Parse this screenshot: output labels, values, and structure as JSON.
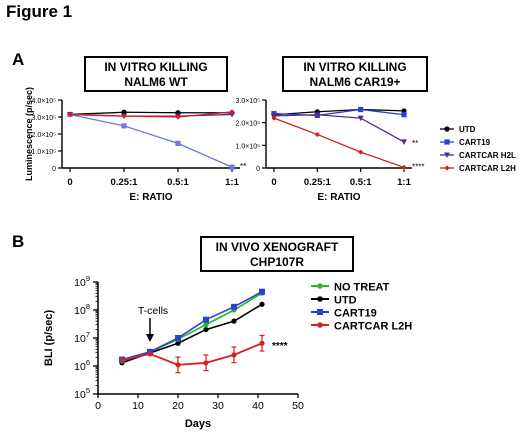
{
  "figure_title": "Figure 1",
  "panels": {
    "A": "A",
    "B": "B"
  },
  "boxes": {
    "a1": [
      "IN VITRO KILLING",
      "NALM6 WT"
    ],
    "a2": [
      "IN VITRO KILLING",
      "NALM6 CAR19+"
    ],
    "b": [
      "IN VIVO XENOGRAFT",
      "CHP107R"
    ]
  },
  "colors": {
    "UTD": "#000000",
    "CART19": "#2e3fd6",
    "CARTCAR H2L": "#5a2a8a",
    "CARTCAR L2H": "#d42020",
    "NO TREAT": "#22bb22",
    "A1_CART19": "#6f78e0"
  },
  "annotations": {
    "a1_sig": "**",
    "a2_sig_h2l": "**",
    "a2_sig_l2h": "****",
    "b_sig": "****",
    "b_tcells": "T-cells"
  },
  "chart_data": [
    {
      "type": "line",
      "title": "",
      "xlabel": "E: RATIO",
      "ylabel": "Luminescence (p/sec)",
      "categories": [
        "0",
        "0.25:1",
        "0.5:1",
        "1:1"
      ],
      "y_ticks": [
        "0",
        "1.0×10⁵",
        "2.0×10⁵",
        "3.0×10⁵",
        "4.0×10⁵"
      ],
      "ylim": [
        0,
        400000
      ],
      "series": [
        {
          "name": "UTD",
          "values": [
            315000,
            328000,
            325000,
            325000
          ]
        },
        {
          "name": "CART19",
          "values": [
            315000,
            248000,
            145000,
            5000
          ]
        },
        {
          "name": "CARTCAR H2L",
          "values": [
            315000,
            305000,
            305000,
            315000
          ]
        },
        {
          "name": "CARTCAR L2H",
          "values": [
            315000,
            305000,
            300000,
            330000
          ]
        }
      ],
      "legend": "none"
    },
    {
      "type": "line",
      "title": "",
      "xlabel": "E: RATIO",
      "ylabel": "",
      "categories": [
        "0",
        "0.25:1",
        "0.5:1",
        "1:1"
      ],
      "y_ticks": [
        "0",
        "1.0×10⁵",
        "2.0×10⁵",
        "3.0×10⁵"
      ],
      "ylim": [
        0,
        300000
      ],
      "series": [
        {
          "name": "UTD",
          "values": [
            235000,
            248000,
            258000,
            252000
          ]
        },
        {
          "name": "CART19",
          "values": [
            240000,
            232000,
            258000,
            235000
          ]
        },
        {
          "name": "CARTCAR H2L",
          "values": [
            230000,
            235000,
            220000,
            115000
          ]
        },
        {
          "name": "CARTCAR L2H",
          "values": [
            220000,
            148000,
            70000,
            3000
          ]
        }
      ],
      "legend": "right"
    },
    {
      "type": "line",
      "title": "",
      "xlabel": "Days",
      "ylabel": "BLI (p/sec)",
      "x_ticks": [
        0,
        10,
        20,
        30,
        40,
        50
      ],
      "xlim": [
        0,
        50
      ],
      "y_scale": "log",
      "y_ticks": [
        {
          "base": "10",
          "exp": "5"
        },
        {
          "base": "10",
          "exp": "6"
        },
        {
          "base": "10",
          "exp": "7"
        },
        {
          "base": "10",
          "exp": "8"
        },
        {
          "base": "10",
          "exp": "9"
        }
      ],
      "ylim": [
        100000,
        1000000000
      ],
      "series": [
        {
          "name": "NO TREAT",
          "x": [
            6,
            13,
            20,
            27,
            34,
            41
          ],
          "y": [
            1500000,
            3200000,
            9000000,
            30000000,
            100000000,
            400000000
          ]
        },
        {
          "name": "UTD",
          "x": [
            6,
            13,
            20,
            27,
            34,
            41
          ],
          "y": [
            1300000,
            2900000,
            6500000,
            20000000,
            40000000,
            160000000
          ]
        },
        {
          "name": "CART19",
          "x": [
            6,
            13,
            20,
            27,
            34,
            41
          ],
          "y": [
            1700000,
            3200000,
            10000000,
            45000000,
            130000000,
            450000000
          ]
        },
        {
          "name": "CARTCAR L2H",
          "x": [
            6,
            13,
            20,
            27,
            34,
            41
          ],
          "y": [
            1600000,
            2700000,
            1100000,
            1300000,
            2500000,
            6500000
          ]
        }
      ],
      "legend": "right"
    }
  ],
  "legend_a": [
    "UTD",
    "CART19",
    "CARTCAR H2L",
    "CARTCAR L2H"
  ],
  "legend_b": [
    "NO TREAT",
    "UTD",
    "CART19",
    "CARTCAR L2H"
  ]
}
